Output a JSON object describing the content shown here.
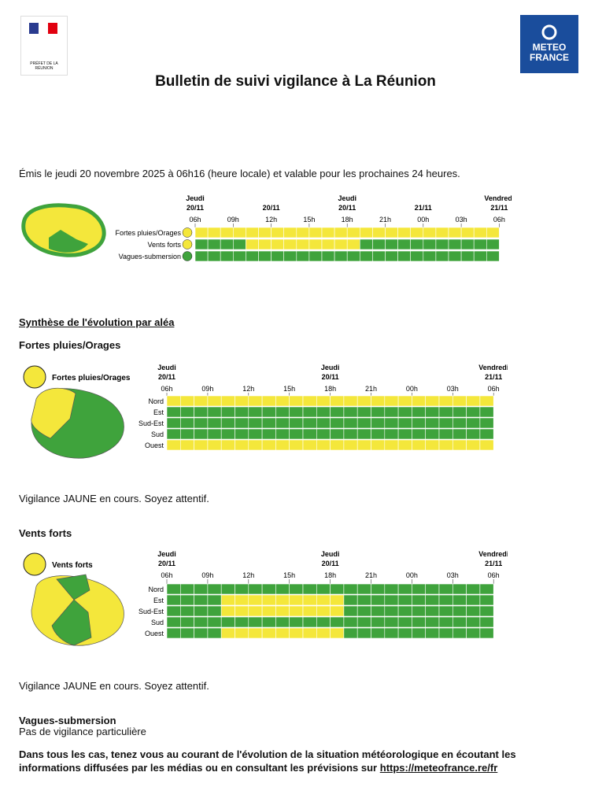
{
  "header": {
    "logo_left": "PRÉFET DE LA RÉUNION",
    "logo_right": [
      "METEO",
      "FRANCE"
    ],
    "title": "Bulletin de suivi vigilance à La Réunion"
  },
  "issued": "Émis le jeudi 20 novembre 2025 à 06h16 (heure locale) et valable pour les prochaines 24 heures.",
  "overview": {
    "timeline": {
      "days": [
        "Jeudi",
        null,
        null,
        null,
        "Jeudi",
        null,
        null,
        null,
        "Vendredi"
      ],
      "dates": [
        "20/11",
        null,
        "20/11",
        null,
        "20/11",
        null,
        "21/11",
        null,
        "21/11"
      ],
      "hours": [
        "06h",
        "09h",
        "12h",
        "15h",
        "18h",
        "21h",
        "00h",
        "03h",
        "06h"
      ]
    },
    "rows": [
      {
        "label": "Fortes pluies/Orages",
        "cells": [
          "#f4e73b",
          "#f4e73b",
          "#f4e73b",
          "#f4e73b",
          "#f4e73b",
          "#f4e73b",
          "#f4e73b",
          "#f4e73b",
          "#f4e73b",
          "#f4e73b",
          "#f4e73b",
          "#f4e73b",
          "#f4e73b",
          "#f4e73b",
          "#f4e73b",
          "#f4e73b",
          "#f4e73b",
          "#f4e73b",
          "#f4e73b",
          "#f4e73b",
          "#f4e73b",
          "#f4e73b",
          "#f4e73b",
          "#f4e73b"
        ]
      },
      {
        "label": "Vents forts",
        "cells": [
          "#3fa33c",
          "#3fa33c",
          "#3fa33c",
          "#3fa33c",
          "#f4e73b",
          "#f4e73b",
          "#f4e73b",
          "#f4e73b",
          "#f4e73b",
          "#f4e73b",
          "#f4e73b",
          "#f4e73b",
          "#f4e73b",
          "#3fa33c",
          "#3fa33c",
          "#3fa33c",
          "#3fa33c",
          "#3fa33c",
          "#3fa33c",
          "#3fa33c",
          "#3fa33c",
          "#3fa33c",
          "#3fa33c",
          "#3fa33c"
        ]
      },
      {
        "label": "Vagues-submersion",
        "cells": [
          "#3fa33c",
          "#3fa33c",
          "#3fa33c",
          "#3fa33c",
          "#3fa33c",
          "#3fa33c",
          "#3fa33c",
          "#3fa33c",
          "#3fa33c",
          "#3fa33c",
          "#3fa33c",
          "#3fa33c",
          "#3fa33c",
          "#3fa33c",
          "#3fa33c",
          "#3fa33c",
          "#3fa33c",
          "#3fa33c",
          "#3fa33c",
          "#3fa33c",
          "#3fa33c",
          "#3fa33c",
          "#3fa33c",
          "#3fa33c"
        ]
      }
    ]
  },
  "synthesis_title": "Synthèse de l'évolution par aléa",
  "sections": [
    {
      "title": "Fortes pluies/Orages",
      "icon_label": "Fortes pluies/Orages",
      "timeline": {
        "days": [
          "Jeudi",
          null,
          null,
          null,
          "Jeudi",
          null,
          null,
          null,
          "Vendredi"
        ],
        "dates": [
          "20/11",
          null,
          null,
          null,
          "20/11",
          null,
          null,
          null,
          "21/11"
        ],
        "hours": [
          "06h",
          "09h",
          "12h",
          "15h",
          "18h",
          "21h",
          "00h",
          "03h",
          "06h"
        ]
      },
      "rows": [
        {
          "label": "Nord",
          "cells": [
            "#f4e73b",
            "#f4e73b",
            "#f4e73b",
            "#f4e73b",
            "#f4e73b",
            "#f4e73b",
            "#f4e73b",
            "#f4e73b",
            "#f4e73b",
            "#f4e73b",
            "#f4e73b",
            "#f4e73b",
            "#f4e73b",
            "#f4e73b",
            "#f4e73b",
            "#f4e73b",
            "#f4e73b",
            "#f4e73b",
            "#f4e73b",
            "#f4e73b",
            "#f4e73b",
            "#f4e73b",
            "#f4e73b",
            "#f4e73b"
          ]
        },
        {
          "label": "Est",
          "cells": [
            "#3fa33c",
            "#3fa33c",
            "#3fa33c",
            "#3fa33c",
            "#3fa33c",
            "#3fa33c",
            "#3fa33c",
            "#3fa33c",
            "#3fa33c",
            "#3fa33c",
            "#3fa33c",
            "#3fa33c",
            "#3fa33c",
            "#3fa33c",
            "#3fa33c",
            "#3fa33c",
            "#3fa33c",
            "#3fa33c",
            "#3fa33c",
            "#3fa33c",
            "#3fa33c",
            "#3fa33c",
            "#3fa33c",
            "#3fa33c"
          ]
        },
        {
          "label": "Sud-Est",
          "cells": [
            "#3fa33c",
            "#3fa33c",
            "#3fa33c",
            "#3fa33c",
            "#3fa33c",
            "#3fa33c",
            "#3fa33c",
            "#3fa33c",
            "#3fa33c",
            "#3fa33c",
            "#3fa33c",
            "#3fa33c",
            "#3fa33c",
            "#3fa33c",
            "#3fa33c",
            "#3fa33c",
            "#3fa33c",
            "#3fa33c",
            "#3fa33c",
            "#3fa33c",
            "#3fa33c",
            "#3fa33c",
            "#3fa33c",
            "#3fa33c"
          ]
        },
        {
          "label": "Sud",
          "cells": [
            "#3fa33c",
            "#3fa33c",
            "#3fa33c",
            "#3fa33c",
            "#3fa33c",
            "#3fa33c",
            "#3fa33c",
            "#3fa33c",
            "#3fa33c",
            "#3fa33c",
            "#3fa33c",
            "#3fa33c",
            "#3fa33c",
            "#3fa33c",
            "#3fa33c",
            "#3fa33c",
            "#3fa33c",
            "#3fa33c",
            "#3fa33c",
            "#3fa33c",
            "#3fa33c",
            "#3fa33c",
            "#3fa33c",
            "#3fa33c"
          ]
        },
        {
          "label": "Ouest",
          "cells": [
            "#f4e73b",
            "#f4e73b",
            "#f4e73b",
            "#f4e73b",
            "#f4e73b",
            "#f4e73b",
            "#f4e73b",
            "#f4e73b",
            "#f4e73b",
            "#f4e73b",
            "#f4e73b",
            "#f4e73b",
            "#f4e73b",
            "#f4e73b",
            "#f4e73b",
            "#f4e73b",
            "#f4e73b",
            "#f4e73b",
            "#f4e73b",
            "#f4e73b",
            "#f4e73b",
            "#f4e73b",
            "#f4e73b",
            "#f4e73b"
          ]
        }
      ],
      "status": "Vigilance JAUNE en cours. Soyez attentif."
    },
    {
      "title": "Vents forts",
      "icon_label": "Vents forts",
      "timeline": {
        "days": [
          "Jeudi",
          null,
          null,
          null,
          "Jeudi",
          null,
          null,
          null,
          "Vendredi"
        ],
        "dates": [
          "20/11",
          null,
          null,
          null,
          "20/11",
          null,
          null,
          null,
          "21/11"
        ],
        "hours": [
          "06h",
          "09h",
          "12h",
          "15h",
          "18h",
          "21h",
          "00h",
          "03h",
          "06h"
        ]
      },
      "rows": [
        {
          "label": "Nord",
          "cells": [
            "#3fa33c",
            "#3fa33c",
            "#3fa33c",
            "#3fa33c",
            "#3fa33c",
            "#3fa33c",
            "#3fa33c",
            "#3fa33c",
            "#3fa33c",
            "#3fa33c",
            "#3fa33c",
            "#3fa33c",
            "#3fa33c",
            "#3fa33c",
            "#3fa33c",
            "#3fa33c",
            "#3fa33c",
            "#3fa33c",
            "#3fa33c",
            "#3fa33c",
            "#3fa33c",
            "#3fa33c",
            "#3fa33c",
            "#3fa33c"
          ]
        },
        {
          "label": "Est",
          "cells": [
            "#3fa33c",
            "#3fa33c",
            "#3fa33c",
            "#3fa33c",
            "#f4e73b",
            "#f4e73b",
            "#f4e73b",
            "#f4e73b",
            "#f4e73b",
            "#f4e73b",
            "#f4e73b",
            "#f4e73b",
            "#f4e73b",
            "#3fa33c",
            "#3fa33c",
            "#3fa33c",
            "#3fa33c",
            "#3fa33c",
            "#3fa33c",
            "#3fa33c",
            "#3fa33c",
            "#3fa33c",
            "#3fa33c",
            "#3fa33c"
          ]
        },
        {
          "label": "Sud-Est",
          "cells": [
            "#3fa33c",
            "#3fa33c",
            "#3fa33c",
            "#3fa33c",
            "#f4e73b",
            "#f4e73b",
            "#f4e73b",
            "#f4e73b",
            "#f4e73b",
            "#f4e73b",
            "#f4e73b",
            "#f4e73b",
            "#f4e73b",
            "#3fa33c",
            "#3fa33c",
            "#3fa33c",
            "#3fa33c",
            "#3fa33c",
            "#3fa33c",
            "#3fa33c",
            "#3fa33c",
            "#3fa33c",
            "#3fa33c",
            "#3fa33c"
          ]
        },
        {
          "label": "Sud",
          "cells": [
            "#3fa33c",
            "#3fa33c",
            "#3fa33c",
            "#3fa33c",
            "#3fa33c",
            "#3fa33c",
            "#3fa33c",
            "#3fa33c",
            "#3fa33c",
            "#3fa33c",
            "#3fa33c",
            "#3fa33c",
            "#3fa33c",
            "#3fa33c",
            "#3fa33c",
            "#3fa33c",
            "#3fa33c",
            "#3fa33c",
            "#3fa33c",
            "#3fa33c",
            "#3fa33c",
            "#3fa33c",
            "#3fa33c",
            "#3fa33c"
          ]
        },
        {
          "label": "Ouest",
          "cells": [
            "#3fa33c",
            "#3fa33c",
            "#3fa33c",
            "#3fa33c",
            "#f4e73b",
            "#f4e73b",
            "#f4e73b",
            "#f4e73b",
            "#f4e73b",
            "#f4e73b",
            "#f4e73b",
            "#f4e73b",
            "#f4e73b",
            "#3fa33c",
            "#3fa33c",
            "#3fa33c",
            "#3fa33c",
            "#3fa33c",
            "#3fa33c",
            "#3fa33c",
            "#3fa33c",
            "#3fa33c",
            "#3fa33c",
            "#3fa33c"
          ]
        }
      ],
      "status": "Vigilance JAUNE en cours. Soyez attentif."
    },
    {
      "title": "Vagues-submersion",
      "status": "Pas de vigilance particulière"
    }
  ],
  "footer": {
    "text": "Dans tous les cas, tenez vous au courant de l'évolution de la situation météorologique en écoutant les informations diffusées par les médias ou en consultant les prévisions sur",
    "link": "https://meteofrance.re/fr"
  }
}
